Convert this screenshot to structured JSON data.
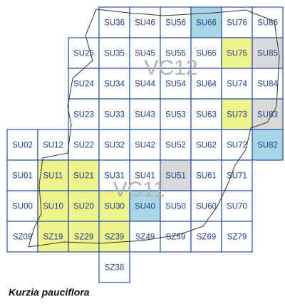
{
  "grid": {
    "rows": [
      [
        null,
        null,
        null,
        {
          "label": "SU36"
        },
        {
          "label": "SU46"
        },
        {
          "label": "SU56"
        },
        {
          "label": "SU66",
          "fill": "#a9d6e5"
        },
        {
          "label": "SU76"
        },
        {
          "label": "SU86"
        }
      ],
      [
        null,
        null,
        {
          "label": "SU25"
        },
        {
          "label": "SU35"
        },
        {
          "label": "SU45"
        },
        {
          "label": "SU55"
        },
        {
          "label": "SU65"
        },
        {
          "label": "SU75",
          "fill": "#eef58c"
        },
        {
          "label": "SU85",
          "fill": "#d9d9d9"
        }
      ],
      [
        null,
        null,
        {
          "label": "SU24"
        },
        {
          "label": "SU34"
        },
        {
          "label": "SU44"
        },
        {
          "label": "SU54"
        },
        {
          "label": "SU64"
        },
        {
          "label": "SU74"
        },
        {
          "label": "SU84"
        }
      ],
      [
        null,
        null,
        {
          "label": "SU23"
        },
        {
          "label": "SU33"
        },
        {
          "label": "SU43"
        },
        {
          "label": "SU53"
        },
        {
          "label": "SU63"
        },
        {
          "label": "SU73",
          "fill": "#eef58c"
        },
        {
          "label": "SU83",
          "fill": "#d9d9d9"
        }
      ],
      [
        {
          "label": "SU02"
        },
        {
          "label": "SU12"
        },
        {
          "label": "SU22"
        },
        {
          "label": "SU32"
        },
        {
          "label": "SU42"
        },
        {
          "label": "SU52"
        },
        {
          "label": "SU62"
        },
        {
          "label": "SU72"
        },
        {
          "label": "SU82",
          "fill": "#a9d6e5"
        }
      ],
      [
        {
          "label": "SU01"
        },
        {
          "label": "SU11",
          "fill": "#eef58c"
        },
        {
          "label": "SU21",
          "fill": "#eef58c"
        },
        {
          "label": "SU31"
        },
        {
          "label": "SU41"
        },
        {
          "label": "SU51",
          "fill": "#d9d9d9"
        },
        {
          "label": "SU61"
        },
        {
          "label": "SU71"
        }
      ],
      [
        {
          "label": "SU00"
        },
        {
          "label": "SU10",
          "fill": "#eef58c"
        },
        {
          "label": "SU20",
          "fill": "#eef58c"
        },
        {
          "label": "SU30",
          "fill": "#eef58c"
        },
        {
          "label": "SU40",
          "fill": "#a9d6e5"
        },
        {
          "label": "SU50"
        },
        {
          "label": "SU60"
        },
        {
          "label": "SU70"
        }
      ],
      [
        {
          "label": "SZ09"
        },
        {
          "label": "SZ19",
          "fill": "#eef58c"
        },
        {
          "label": "SZ29",
          "fill": "#eef58c"
        },
        {
          "label": "SZ39",
          "fill": "#eef58c"
        },
        {
          "label": "SZ49"
        },
        {
          "label": "SZ59"
        },
        {
          "label": "SZ69"
        },
        {
          "label": "SZ79"
        }
      ],
      [
        null,
        null,
        null,
        {
          "label": "SZ38"
        }
      ]
    ]
  },
  "regions": [
    "VC12",
    "VC11"
  ],
  "species": "Kurzia pauciflora"
}
